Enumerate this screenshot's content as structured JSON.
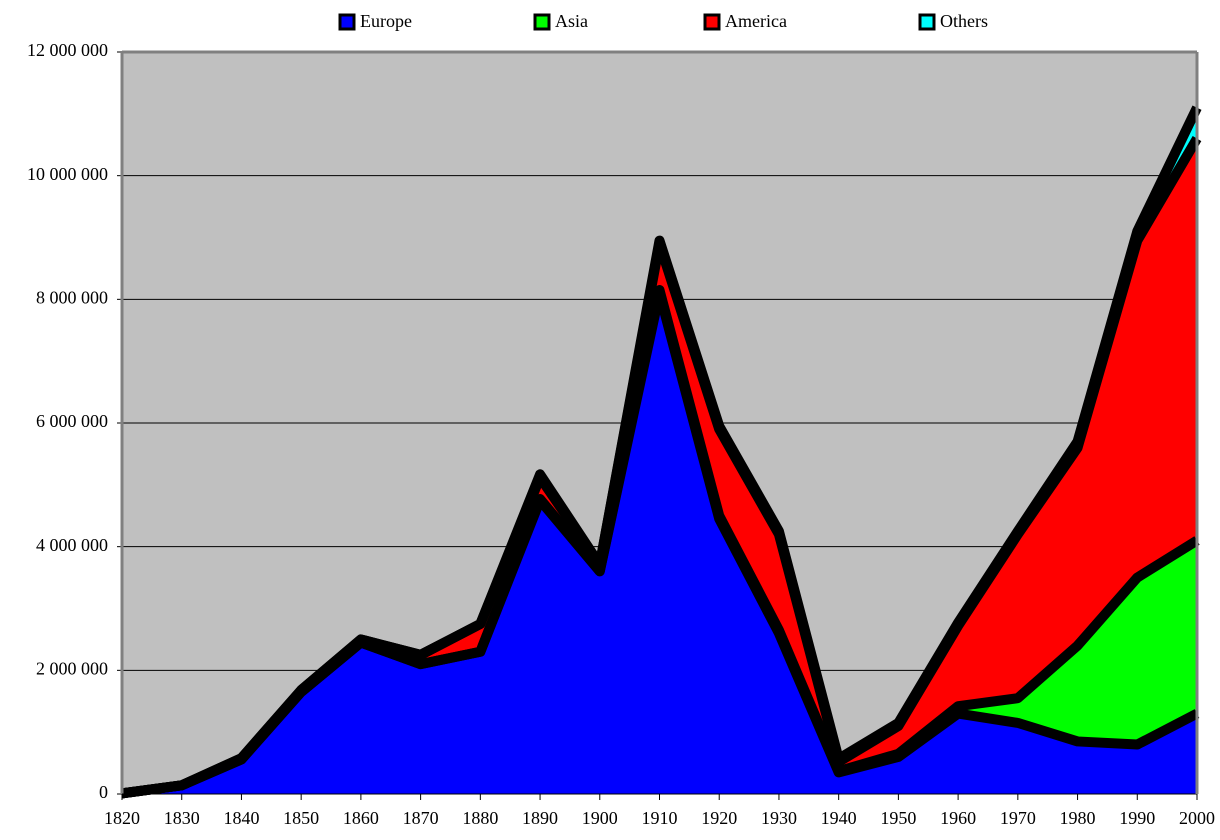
{
  "chart_data": {
    "type": "stacked-area",
    "x": [
      1820,
      1830,
      1840,
      1850,
      1860,
      1870,
      1880,
      1890,
      1900,
      1910,
      1920,
      1930,
      1940,
      1950,
      1960,
      1970,
      1980,
      1990,
      2000
    ],
    "series": [
      {
        "name": "Europe",
        "color": "#0000ff",
        "values": [
          10000,
          140000,
          560000,
          1650000,
          2450000,
          2100000,
          2300000,
          4750000,
          3600000,
          8100000,
          4450000,
          2600000,
          350000,
          600000,
          1300000,
          1150000,
          850000,
          800000,
          1300000
        ]
      },
      {
        "name": "Asia",
        "color": "#00ff00",
        "values": [
          0,
          0,
          0,
          0,
          0,
          0,
          0,
          20000,
          10000,
          50000,
          50000,
          50000,
          20000,
          50000,
          120000,
          400000,
          1550000,
          2700000,
          2800000
        ]
      },
      {
        "name": "America",
        "color": "#ff0000",
        "values": [
          0,
          0,
          20000,
          30000,
          50000,
          150000,
          450000,
          350000,
          100000,
          750000,
          1400000,
          1550000,
          150000,
          450000,
          1300000,
          2650000,
          3200000,
          5450000,
          6500000
        ]
      },
      {
        "name": "Others",
        "color": "#00ffff",
        "values": [
          0,
          0,
          0,
          0,
          0,
          0,
          0,
          50000,
          0,
          50000,
          50000,
          50000,
          50000,
          50000,
          50000,
          50000,
          100000,
          150000,
          500000
        ]
      }
    ],
    "xlim": [
      1820,
      2000
    ],
    "xticks": [
      1820,
      1830,
      1840,
      1850,
      1860,
      1870,
      1880,
      1890,
      1900,
      1910,
      1920,
      1930,
      1940,
      1950,
      1960,
      1970,
      1980,
      1990,
      2000
    ],
    "ylim": [
      0,
      12000000
    ],
    "yticks": [
      0,
      {
        "value": 2000000,
        "label": "2 000 000"
      },
      {
        "value": 4000000,
        "label": "4 000 000"
      },
      {
        "value": 6000000,
        "label": "6 000 000"
      },
      {
        "value": 8000000,
        "label": "8 000 000"
      },
      {
        "value": 10000000,
        "label": "10 000 000"
      },
      {
        "value": 12000000,
        "label": "12 000 000"
      }
    ],
    "grid": true,
    "legend": "top"
  }
}
